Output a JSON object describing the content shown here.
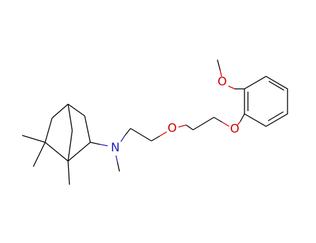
{
  "atoms": [
    {
      "label": "O",
      "role": "methoxy"
    },
    {
      "label": "O",
      "role": "aryl-ether"
    },
    {
      "label": "O",
      "role": "ether"
    },
    {
      "label": "N",
      "role": "amine"
    }
  ]
}
